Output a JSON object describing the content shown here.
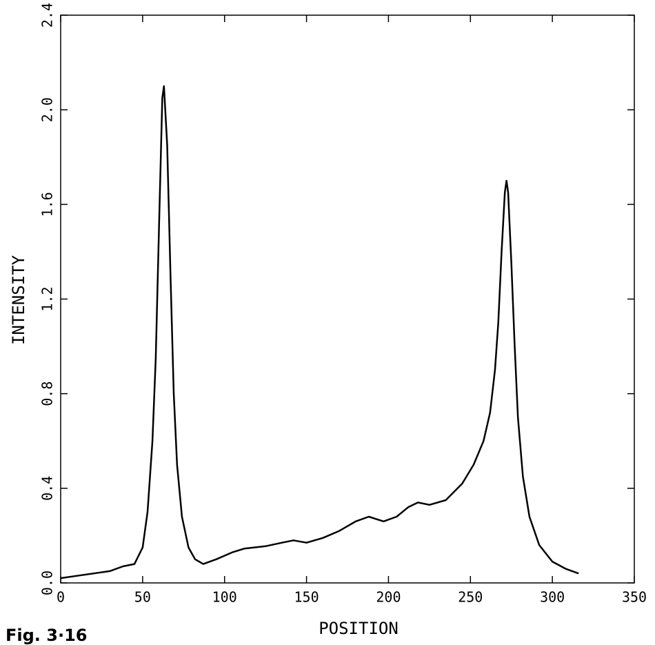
{
  "chart_data": {
    "type": "line",
    "caption": "Fig. 3·16",
    "xlabel": "POSITION",
    "ylabel": "INTENSITY",
    "x": [
      0,
      10,
      20,
      30,
      38,
      45,
      50,
      53,
      56,
      58,
      60,
      62,
      63,
      65,
      67,
      69,
      71,
      74,
      78,
      82,
      87,
      95,
      105,
      112,
      125,
      135,
      142,
      150,
      160,
      170,
      180,
      188,
      197,
      205,
      212,
      218,
      225,
      235,
      245,
      252,
      258,
      262,
      265,
      267,
      269,
      271,
      272,
      273,
      275,
      277,
      279,
      282,
      286,
      292,
      300,
      308,
      316
    ],
    "values": [
      0.02,
      0.03,
      0.04,
      0.05,
      0.07,
      0.08,
      0.15,
      0.3,
      0.6,
      0.95,
      1.5,
      2.05,
      2.1,
      1.85,
      1.3,
      0.8,
      0.5,
      0.28,
      0.15,
      0.1,
      0.08,
      0.1,
      0.13,
      0.145,
      0.155,
      0.17,
      0.18,
      0.17,
      0.19,
      0.22,
      0.26,
      0.28,
      0.26,
      0.28,
      0.32,
      0.34,
      0.33,
      0.35,
      0.42,
      0.5,
      0.6,
      0.72,
      0.9,
      1.1,
      1.4,
      1.65,
      1.7,
      1.65,
      1.35,
      1.0,
      0.7,
      0.45,
      0.28,
      0.16,
      0.09,
      0.06,
      0.04
    ],
    "color": "#000000",
    "xlim": [
      0,
      350
    ],
    "xticks": [
      0,
      50,
      100,
      150,
      200,
      250,
      300,
      350
    ],
    "ylim": [
      0,
      2.4
    ],
    "yticks": [
      {
        "value": 0,
        "label": "0.0"
      },
      0.4,
      0.8,
      1.2,
      1.6,
      {
        "value": 2,
        "label": "2.0"
      },
      2.4
    ]
  }
}
